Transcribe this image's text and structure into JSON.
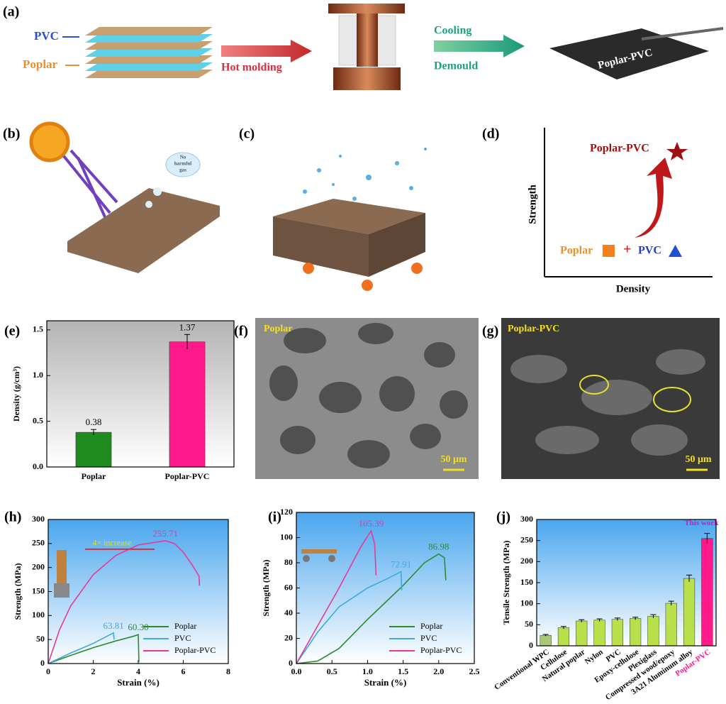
{
  "panel_labels": [
    "(a)",
    "(b)",
    "(c)",
    "(d)",
    "(e)",
    "(f)",
    "(g)",
    "(h)",
    "(i)",
    "(j)"
  ],
  "diagram_a": {
    "pvc": "PVC",
    "poplar": "Poplar",
    "hot": "Hot molding",
    "cooling": "Cooling",
    "demould": "Demould",
    "product": "Poplar-PVC"
  },
  "diagram_b": {
    "bubble_1": "No",
    "bubble_2": "harmful",
    "bubble_3": "gas"
  },
  "diagram_d": {
    "y_label": "Strength",
    "x_label": "Density",
    "top": "Poplar-PVC",
    "poplar": "Poplar",
    "plus": "+",
    "pvc": "PVC"
  },
  "sem_f": {
    "label": "Poplar",
    "scale": "50 μm"
  },
  "sem_g": {
    "label": "Poplar-PVC",
    "scale": "50 μm"
  },
  "chart_data": [
    {
      "type": "bar",
      "ylabel": "Density (g/cm³)",
      "categories": [
        "Poplar",
        "Poplar-PVC"
      ],
      "values": [
        0.38,
        1.37
      ],
      "errors": [
        0.03,
        0.08
      ],
      "colors": [
        "#1f8a1f",
        "#ff1a8c"
      ],
      "ylim": [
        0,
        1.6
      ],
      "yticks": [
        {
          "value": 0,
          "label": "0.0"
        },
        0.5,
        {
          "value": 1,
          "label": "1.0"
        },
        1.5
      ]
    },
    {
      "type": "line",
      "xlabel": "Strain (%)",
      "ylabel": "Strength (MPa)",
      "xlim": [
        0,
        8
      ],
      "xticks": [
        0,
        2,
        4,
        6,
        8
      ],
      "ylim": [
        0,
        300
      ],
      "yticks": [
        0,
        50,
        100,
        150,
        200,
        250,
        300
      ],
      "annotation": "4× increase",
      "legend": "lower right",
      "series": [
        {
          "name": "Poplar",
          "color": "#2e8b2e",
          "x": [
            0,
            1,
            2,
            3,
            3.8,
            4.0,
            4.03
          ],
          "values": [
            0,
            17,
            33,
            47,
            57,
            60.3,
            3
          ],
          "value_labels": [
            null,
            null,
            null,
            null,
            null,
            "60.30",
            null
          ]
        },
        {
          "name": "PVC",
          "color": "#3fa9e0",
          "x": [
            0,
            1,
            2,
            2.9,
            2.93
          ],
          "values": [
            0,
            22,
            42,
            63.81,
            50
          ],
          "value_labels": [
            null,
            null,
            null,
            "63.81",
            null
          ]
        },
        {
          "name": "Poplar-PVC",
          "color": "#e6399b",
          "x": [
            0,
            0.5,
            1,
            2,
            3,
            4,
            5.2,
            5.6,
            6,
            6.4,
            6.7,
            6.72
          ],
          "values": [
            0,
            70,
            120,
            185,
            225,
            247,
            255.71,
            250,
            232,
            205,
            182,
            162
          ],
          "value_labels": [
            null,
            null,
            null,
            null,
            null,
            null,
            "255.71",
            null,
            null,
            null,
            null,
            null
          ]
        }
      ]
    },
    {
      "type": "line",
      "xlabel": "Strain (%)",
      "ylabel": "Strength (MPa)",
      "xlim": [
        0,
        2.5
      ],
      "xticks": [
        {
          "value": 0,
          "label": "0.0"
        },
        0.5,
        {
          "value": 1,
          "label": "1.0"
        },
        1.5,
        {
          "value": 2,
          "label": "2.0"
        },
        2.5
      ],
      "ylim": [
        0,
        120
      ],
      "yticks": [
        0,
        20,
        40,
        60,
        80,
        100,
        120
      ],
      "legend": "lower right",
      "series": [
        {
          "name": "Poplar",
          "color": "#2e8b2e",
          "x": [
            0,
            0.3,
            0.6,
            1,
            1.5,
            1.8,
            2.0,
            2.08,
            2.1
          ],
          "values": [
            0,
            2,
            12,
            35,
            62,
            80,
            86.98,
            84,
            66
          ],
          "value_labels": [
            null,
            null,
            null,
            null,
            null,
            null,
            "86.98",
            null,
            null
          ]
        },
        {
          "name": "PVC",
          "color": "#3fa9e0",
          "x": [
            0,
            0.3,
            0.6,
            1,
            1.3,
            1.47,
            1.48
          ],
          "values": [
            0,
            25,
            45,
            60,
            68,
            72.91,
            58
          ],
          "value_labels": [
            null,
            null,
            null,
            null,
            null,
            "72.91",
            null
          ]
        },
        {
          "name": "Poplar-PVC",
          "color": "#e6399b",
          "x": [
            0,
            0.3,
            0.6,
            0.9,
            1.05,
            1.1,
            1.12
          ],
          "values": [
            0,
            30,
            60,
            92,
            105.39,
            95,
            70
          ],
          "value_labels": [
            null,
            null,
            null,
            null,
            "105.39",
            null,
            null
          ]
        }
      ]
    },
    {
      "type": "bar",
      "ylabel": "Tensile Strength (MPa)",
      "annotation": "This work",
      "categories": [
        "Conventional WPC",
        "Cellulose",
        "Natural poplar",
        "Nylon",
        "PVC",
        "Epoxy-cellulose",
        "Plexiglass",
        "Compressed wood/epoxy",
        "3A21 Aluminum alloy",
        "Poplar-PVC"
      ],
      "values": [
        25,
        43,
        59,
        61,
        63,
        65,
        70,
        101,
        160,
        255
      ],
      "errors": [
        2,
        3,
        3,
        3,
        3,
        3,
        4,
        5,
        8,
        12
      ],
      "colors": [
        "#a8c878",
        "#b8e04a",
        "#b8e04a",
        "#b8e04a",
        "#b8e04a",
        "#b8e04a",
        "#b8e04a",
        "#b8e04a",
        "#b8e04a",
        "#ff1a8c"
      ],
      "ylim": [
        0,
        300
      ],
      "yticks": [
        0,
        50,
        100,
        150,
        200,
        250,
        300
      ]
    }
  ]
}
